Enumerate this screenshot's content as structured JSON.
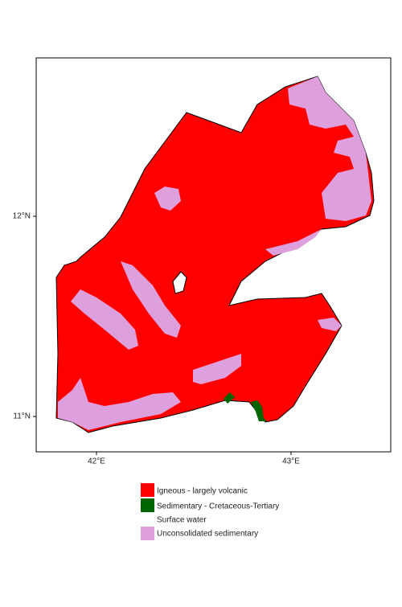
{
  "axes": {
    "y_labels": [
      "12°N",
      "11°N"
    ],
    "x_labels": [
      "42°E",
      "43°E"
    ]
  },
  "legend": {
    "items": [
      "Igneous - largely volcanic",
      "Sedimentary - Cretaceous-Tertiary",
      "Surface water",
      "Unconsolidated sedimentary"
    ]
  }
}
